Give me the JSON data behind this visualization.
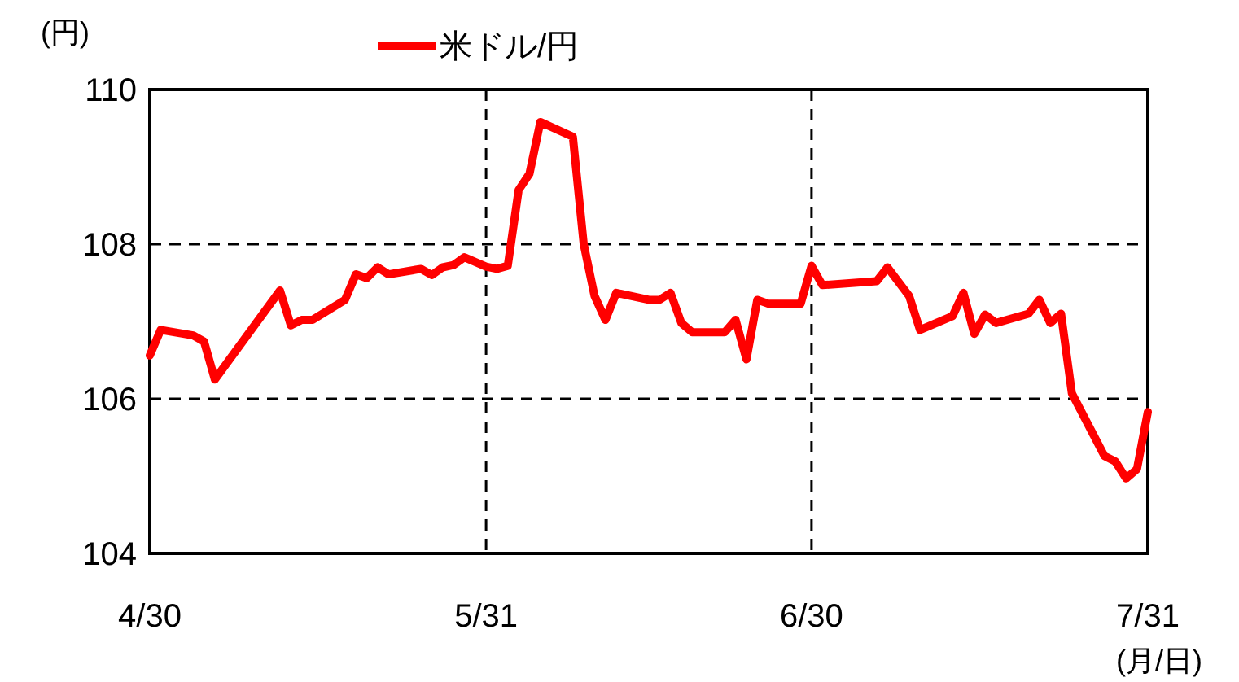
{
  "chart_data": {
    "type": "line",
    "xlabel": "(月/日)",
    "ylabel": "(円)",
    "x": [
      "--04-30",
      "--05-01",
      "--05-04",
      "--05-05",
      "--05-06",
      "--05-12",
      "--05-13",
      "--05-14",
      "--05-15",
      "--05-18",
      "--05-19",
      "--05-20",
      "--05-21",
      "--05-22",
      "--05-25",
      "--05-26",
      "--05-27",
      "--05-28",
      "--05-29",
      "--05-31",
      "--06-01",
      "--06-02",
      "--06-03",
      "--06-04",
      "--06-05",
      "--06-08",
      "--06-09",
      "--06-10",
      "--06-11",
      "--06-12",
      "--06-15",
      "--06-16",
      "--06-17",
      "--06-18",
      "--06-19",
      "--06-22",
      "--06-23",
      "--06-24",
      "--06-25",
      "--06-26",
      "--06-29",
      "--06-30",
      "--07-01",
      "--07-06",
      "--07-07",
      "--07-09",
      "--07-10",
      "--07-13",
      "--07-14",
      "--07-15",
      "--07-16",
      "--07-17",
      "--07-20",
      "--07-21",
      "--07-22",
      "--07-23",
      "--07-24",
      "--07-27",
      "--07-28",
      "--07-29",
      "--07-30",
      "--07-31"
    ],
    "series": [
      {
        "name": "米ドル/円",
        "color": "#ff0000",
        "values": [
          106.56,
          106.89,
          106.82,
          106.74,
          106.25,
          107.4,
          106.95,
          107.02,
          107.02,
          107.28,
          107.61,
          107.56,
          107.7,
          107.61,
          107.68,
          107.6,
          107.7,
          107.73,
          107.83,
          107.71,
          107.68,
          107.72,
          108.7,
          108.91,
          109.58,
          109.39,
          108.0,
          107.33,
          107.02,
          107.37,
          107.28,
          107.28,
          107.37,
          106.98,
          106.86,
          106.86,
          107.02,
          106.51,
          107.28,
          107.23,
          107.23,
          107.72,
          107.47,
          107.52,
          107.7,
          107.33,
          106.89,
          107.07,
          107.37,
          106.84,
          107.09,
          106.98,
          107.1,
          107.28,
          106.98,
          107.1,
          106.07,
          105.26,
          105.19,
          104.97,
          105.09,
          105.83
        ]
      }
    ],
    "xlim": [
      "--04-30",
      "--07-31"
    ],
    "xticks": [
      {
        "value": "--04-30",
        "label": "4/30"
      },
      {
        "value": "--05-31",
        "label": "5/31"
      },
      {
        "value": "--06-30",
        "label": "6/30"
      },
      {
        "value": "--07-31",
        "label": "7/31"
      }
    ],
    "ylim": [
      104,
      110
    ],
    "yticks": [
      104,
      106,
      108,
      110
    ],
    "grid": true,
    "legend": "top",
    "line_style": "solid",
    "marker": "none"
  }
}
